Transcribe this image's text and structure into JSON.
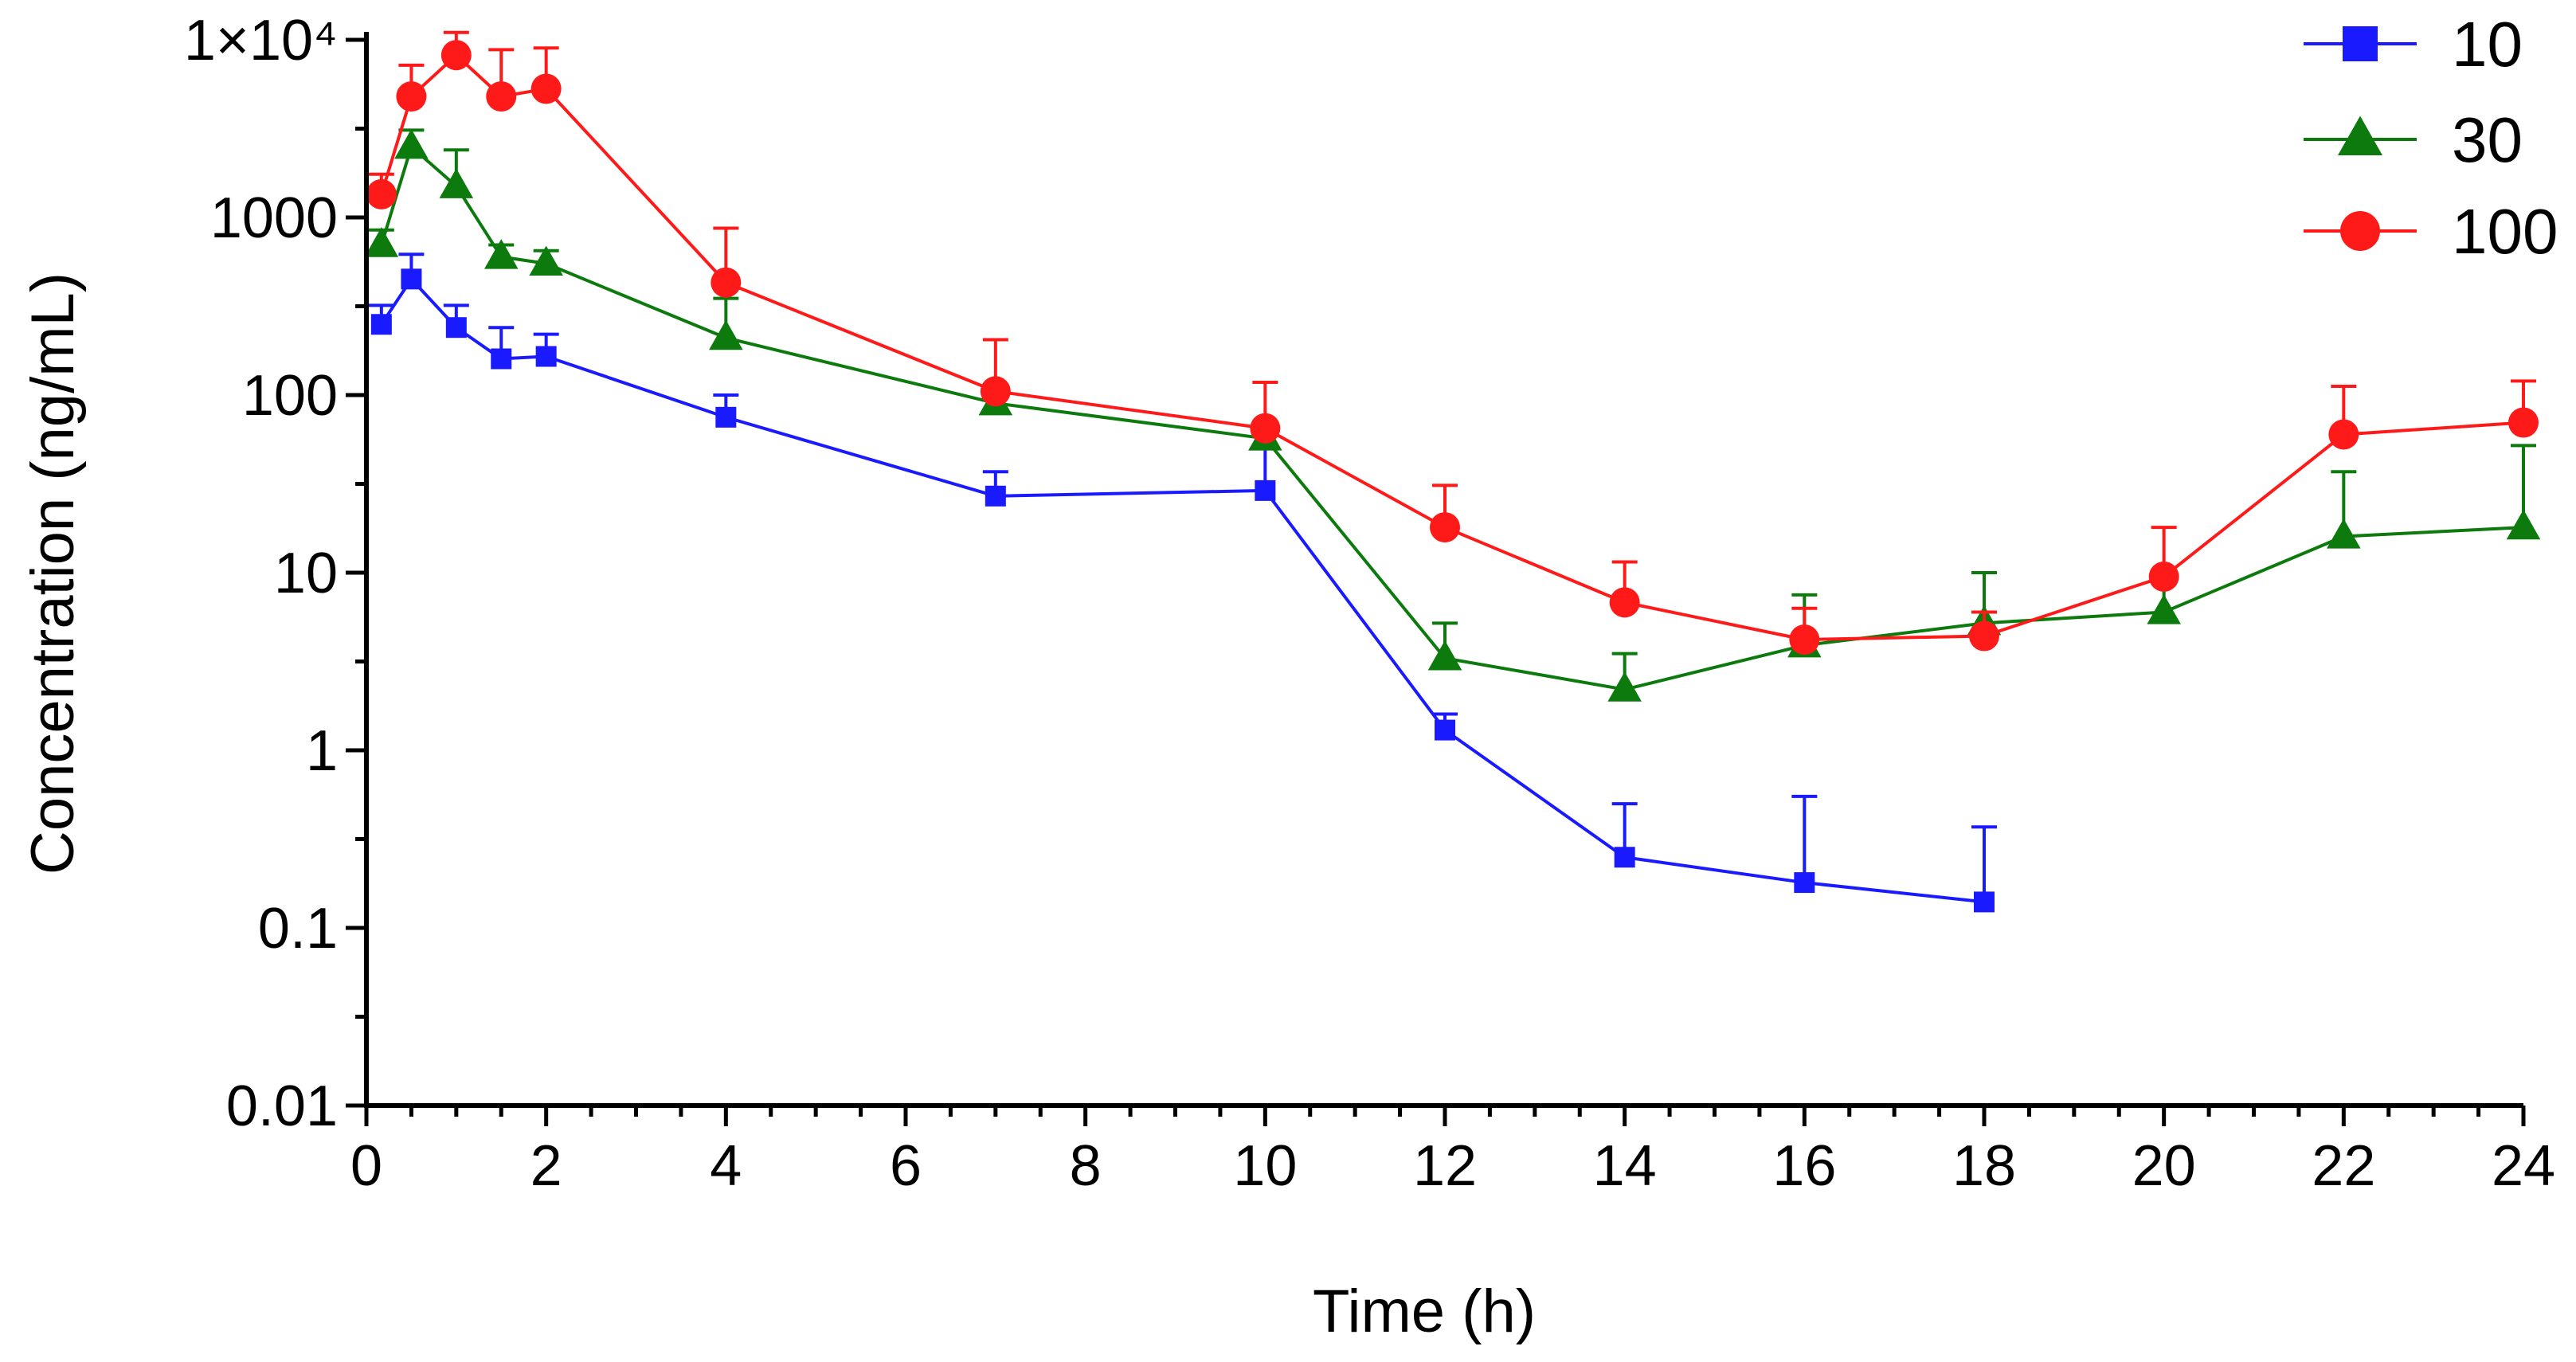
{
  "chart_data": {
    "type": "line",
    "xlabel": "Time (h)",
    "ylabel": "Concentration (ng/mL)",
    "xlim": [
      0,
      24
    ],
    "ylim": [
      0.01,
      10000
    ],
    "yscale": "log",
    "x_ticks": [
      "0",
      "2",
      "4",
      "6",
      "8",
      "10",
      "12",
      "14",
      "16",
      "18",
      "20",
      "22",
      "24"
    ],
    "y_ticks": [
      {
        "value": 0.01,
        "label": "0.01"
      },
      {
        "value": 0.1,
        "label": "0.1"
      },
      {
        "value": 1,
        "label": "1"
      },
      {
        "value": 10,
        "label": "10"
      },
      {
        "value": 100,
        "label": "100"
      },
      {
        "value": 1000,
        "label": "1000"
      },
      {
        "value": 10000,
        "label": "1×10⁴"
      }
    ],
    "grid": false,
    "legend_position": "top-right",
    "series": [
      {
        "name": "10",
        "color": "#1a1aff",
        "marker": "square",
        "x": [
          0.167,
          0.5,
          1,
          1.5,
          2,
          4,
          7,
          10,
          12,
          14,
          16,
          18
        ],
        "y": [
          250,
          450,
          240,
          160,
          165,
          75,
          27,
          29,
          1.3,
          0.25,
          0.18,
          0.14
        ],
        "yerr": [
          320,
          620,
          320,
          240,
          220,
          100,
          37,
          50,
          1.6,
          0.5,
          0.55,
          0.37
        ]
      },
      {
        "name": "30",
        "color": "#0c7a0c",
        "marker": "triangle",
        "x": [
          0.167,
          0.5,
          1,
          1.5,
          2,
          4,
          7,
          10,
          12,
          14,
          16,
          18,
          20,
          22,
          24
        ],
        "y": [
          700,
          2500,
          1500,
          600,
          550,
          210,
          90,
          57,
          3.3,
          2.2,
          3.9,
          5.2,
          6.0,
          16,
          18
        ],
        "yerr": [
          850,
          3100,
          2400,
          700,
          650,
          350,
          110,
          70,
          5.2,
          3.5,
          7.5,
          10,
          9,
          37,
          52
        ]
      },
      {
        "name": "100",
        "color": "#ff1a1a",
        "marker": "circle",
        "x": [
          0.167,
          0.5,
          1,
          1.5,
          2,
          4,
          7,
          10,
          12,
          14,
          16,
          18,
          20,
          22,
          24
        ],
        "y": [
          1350,
          4800,
          8200,
          4800,
          5300,
          430,
          105,
          65,
          18,
          6.8,
          4.2,
          4.4,
          9.5,
          60,
          70
        ],
        "yerr": [
          1750,
          7200,
          11000,
          8800,
          9000,
          870,
          205,
          118,
          31,
          11.5,
          6.3,
          6.0,
          18,
          112,
          120
        ]
      }
    ]
  }
}
